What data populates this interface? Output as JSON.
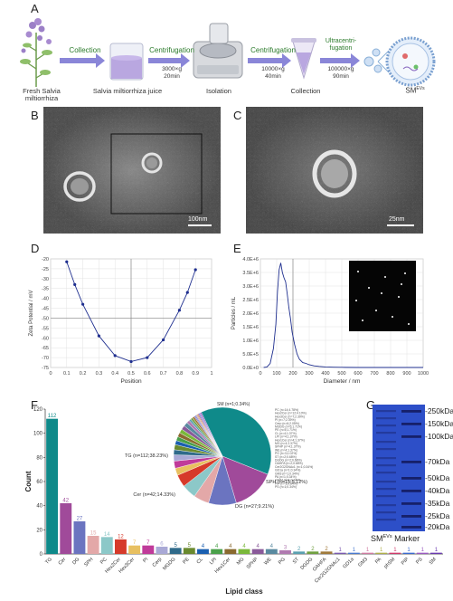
{
  "panels": {
    "a": "A",
    "b": "B",
    "c": "C",
    "d": "D",
    "e": "E",
    "f": "F",
    "g": "G"
  },
  "workflow": {
    "labels": [
      "Fresh Salvia miltiorrhiza",
      "Salvia miltiorrhiza juice",
      "Isolation",
      "Collection",
      "SMEVs"
    ],
    "sm_base": "SM",
    "sm_sup": "EVs",
    "steps": [
      {
        "top": "Collection",
        "bottom": ""
      },
      {
        "top": "Centrifugation",
        "bottom": "3000×g\n20min"
      },
      {
        "top": "Centrifugation",
        "bottom": "10000×g\n40min"
      },
      {
        "top": "Ultracentri-\nfugation",
        "bottom": "100000×g\n90min"
      }
    ],
    "colors": {
      "arrow": "#8a86d8",
      "step_text": "#2a7a2a",
      "juice": "#b9a7e0",
      "plant": "#9b7fc7",
      "leaf": "#8fbf6a"
    }
  },
  "tem": {
    "b_scale": "100nm",
    "c_scale": "25nm"
  },
  "chart_data": [
    {
      "id": "D",
      "type": "line",
      "xlabel": "Position",
      "ylabel": "Zeta Potential / mV",
      "xlim": [
        0,
        1
      ],
      "ylim": [
        -75,
        -20
      ],
      "xticks": [
        "0",
        "0.1",
        "0.2",
        "0.3",
        "0.4",
        "0.5",
        "0.6",
        "0.7",
        "0.8",
        "0.9",
        "1"
      ],
      "yticks": [
        "-20",
        "-25",
        "-30",
        "-35",
        "-40",
        "-45",
        "-50",
        "-55",
        "-60",
        "-65",
        "-70",
        "-75"
      ],
      "x": [
        0.1,
        0.15,
        0.2,
        0.3,
        0.4,
        0.5,
        0.6,
        0.7,
        0.8,
        0.85,
        0.9
      ],
      "y": [
        -21.5,
        -33,
        -43,
        -59,
        -69,
        -72,
        -70,
        -61,
        -46,
        -37,
        -25.5
      ],
      "hline": -50,
      "vline": 0.5,
      "color": "#1f2f8f"
    },
    {
      "id": "E",
      "type": "line",
      "xlabel": "Diameter / nm",
      "ylabel": "Particles / mL",
      "xlim": [
        0,
        1000
      ],
      "ylim": [
        0,
        4000000
      ],
      "xticks": [
        "0",
        "100",
        "200",
        "300",
        "400",
        "500",
        "600",
        "700",
        "800",
        "900",
        "1000"
      ],
      "yticks": [
        "0.0E+0",
        "5.0E+5",
        "1.0E+6",
        "1.5E+6",
        "2.0E+6",
        "2.5E+6",
        "3.0E+6",
        "3.5E+6",
        "4.0E+6"
      ],
      "x": [
        20,
        40,
        60,
        80,
        95,
        105,
        115,
        125,
        135,
        145,
        155,
        165,
        175,
        185,
        195,
        210,
        225,
        240,
        260,
        280,
        300,
        330,
        360,
        400,
        450,
        500,
        600,
        700,
        800,
        900,
        1000
      ],
      "y": [
        0,
        20000,
        150000,
        700000,
        1600000,
        2800000,
        3600000,
        3850000,
        3500000,
        3300000,
        3150000,
        2700000,
        2200000,
        1800000,
        1300000,
        850000,
        500000,
        300000,
        180000,
        150000,
        100000,
        60000,
        40000,
        20000,
        10000,
        5000,
        0,
        0,
        0,
        0,
        0
      ],
      "vline": 200,
      "color": "#1f2f8f"
    },
    {
      "id": "F",
      "type": "bar",
      "xlabel": "Lipid class",
      "ylabel": "Count",
      "ylim": [
        0,
        120
      ],
      "yticks": [
        "0",
        "20",
        "40",
        "60",
        "80",
        "100",
        "120"
      ],
      "categories": [
        "TG",
        "Cer",
        "DG",
        "SPH",
        "PC",
        "Hex2Cer",
        "Hex3Cer",
        "PI",
        "Cerp",
        "MGDG",
        "PE",
        "CL",
        "LPI",
        "Hex1Cer",
        "MG",
        "SPHP",
        "WE",
        "PG",
        "ST",
        "DGDG",
        "OAHFA",
        "Cer2G2GNAc1",
        "GD1a",
        "GM3",
        "PA",
        "phSM",
        "PIP",
        "PS",
        "SM"
      ],
      "values": [
        112,
        42,
        27,
        15,
        14,
        12,
        7,
        7,
        6,
        5,
        5,
        4,
        4,
        4,
        4,
        4,
        4,
        3,
        2,
        2,
        2,
        1,
        1,
        1,
        1,
        1,
        1,
        1,
        1
      ],
      "value_labels": [
        "112",
        "42",
        "27",
        "15",
        "14",
        "12",
        "7",
        "7",
        "6",
        "5",
        "5",
        "4",
        "4",
        "4",
        "4",
        "4",
        "4",
        "3",
        "2",
        "2",
        "2",
        "1",
        "1",
        "1",
        "1",
        "1",
        "1",
        "1",
        "1"
      ],
      "colors": [
        "#0f8a8a",
        "#a04a9a",
        "#6b74c0",
        "#e3a8a8",
        "#8cc8c8",
        "#d63a2a",
        "#e8c060",
        "#c03a9a",
        "#a9a9d6",
        "#2f6a8a",
        "#6a8a2f",
        "#1a5fb0",
        "#4aa04a",
        "#8a6a2f",
        "#7ab83a",
        "#8a5a9a",
        "#5a8aa0",
        "#b07ab0",
        "#5aa0b0",
        "#70a040",
        "#a07a3a",
        "#7a5ab0",
        "#4a7ad0",
        "#d07aa0",
        "#b0b04a",
        "#d03a6a",
        "#3a6ad0",
        "#9a5ac0",
        "#6a3ab0"
      ]
    },
    {
      "id": "F-pie",
      "type": "pie",
      "labels": [
        "TG (n=112;38.23%)",
        "Cer (n=42;14.33%)",
        "DG (n=27;9.21%)",
        "SPH (n=15;5.12%)",
        "PC (n=14;4.78%)",
        "Hex2Cer (n=12;4.10%)",
        "Hex3Cer (n=7;2.39%)",
        "PI (n=7;2.39%)",
        "Cerp (n=6;2.05%)",
        "MGDG (n=5;1.71%)",
        "PE (n=5;1.71%)",
        "CL (n=4;1.37%)",
        "LPI (n=4;1.37%)",
        "Hex1Cer (n=4;1.37%)",
        "MG (n=4;1.37%)",
        "SPHP (n=4;1.37%)",
        "WE (n=4;1.37%)",
        "PG (n=3;1.02%)",
        "ST (n=2;0.68%)",
        "DGDG (n=2;0.68%)",
        "OAHFA (n=2;0.68%)",
        "Cer2G2GNAc1 (n=1;0.34%)",
        "GD1a (n=1;0.34%)",
        "GM3 (n=1;0.34%)",
        "PA (n=1;0.34%)",
        "phSM (n=1;0.34%)",
        "PIP (n=1;0.34%)",
        "PS (n=1;0.34%)",
        "SM (n=1;0.34%)"
      ],
      "values": [
        112,
        42,
        27,
        15,
        14,
        12,
        7,
        7,
        6,
        5,
        5,
        4,
        4,
        4,
        4,
        4,
        4,
        3,
        2,
        2,
        2,
        1,
        1,
        1,
        1,
        1,
        1,
        1,
        1
      ],
      "shown_labels": {
        "TG": "TG (n=112;38.23%)",
        "Cer": "Cer (n=42;14.33%)",
        "DG": "DG (n=27;9.21%)",
        "SPH": "SPH (n=15;5.12%)",
        "SM": "SM (n=1;0.34%)"
      }
    }
  ],
  "gel": {
    "markers": [
      "-250kDa",
      "-150kDa",
      "-100kDa",
      "-70kDa",
      "-50kDa",
      "-40kDa",
      "-35kDa",
      "-25kDa",
      "-20kDa"
    ],
    "lane_labels": {
      "sm": "SM",
      "sm_sup": "EVs",
      "marker": "Marker"
    },
    "colors": {
      "gel": "#2d4fc8",
      "band": "#1c2a7a"
    }
  }
}
